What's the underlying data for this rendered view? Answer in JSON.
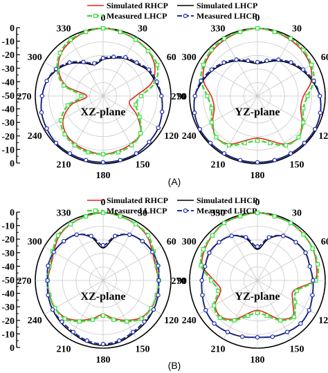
{
  "colors": {
    "simulated_rhcp": "#e8231d",
    "simulated_lhcp": "#000000",
    "measured_lhcp": "#3ddc3d",
    "measured_lhcp_2": "#1a2aa6"
  },
  "chart_data": [
    {
      "type": "polar-line",
      "panel": "(A)",
      "plane": "XZ-plane",
      "rlim": [
        -50,
        0
      ],
      "radial_ticks": [
        0,
        -10,
        -20,
        -30,
        -40,
        -50
      ],
      "angle_ticks": [
        0,
        30,
        60,
        90,
        120,
        150,
        180,
        210,
        240,
        270,
        300,
        330
      ],
      "theta": [
        0,
        15,
        30,
        45,
        60,
        75,
        90,
        105,
        120,
        135,
        150,
        165,
        180,
        195,
        210,
        225,
        240,
        255,
        270,
        285,
        300,
        315,
        330,
        345
      ],
      "series": [
        {
          "name": "Simulated RHCP",
          "values": [
            0,
            -1,
            -2,
            -3,
            -6,
            -13,
            -26,
            -30,
            -21,
            -11,
            -9,
            -8,
            -7,
            -8,
            -9,
            -11,
            -16,
            -26,
            -38,
            -22,
            -12,
            -6,
            -3,
            -1
          ]
        },
        {
          "name": "Simulated LHCP",
          "values": [
            -23,
            -21,
            -18,
            -16,
            -12,
            -10,
            -7,
            -5,
            -3,
            -2,
            -1,
            -1,
            -1,
            -1,
            -1,
            -1,
            -2,
            -3,
            -5,
            -7,
            -11,
            -16,
            -22,
            -26
          ]
        },
        {
          "name": "Measured LHCP",
          "values": [
            0,
            -1,
            -2,
            -3,
            -4,
            -10,
            -22,
            -25,
            -19,
            -11,
            -8,
            -7,
            -7,
            -7,
            -8,
            -10,
            -14,
            -23,
            -34,
            -20,
            -11,
            -5,
            -2,
            -1
          ]
        },
        {
          "name": "Measured LHCP",
          "values": [
            -22,
            -20,
            -17,
            -15,
            -11,
            -9,
            -7,
            -5,
            -3,
            -2,
            -1,
            -1,
            -1,
            -1,
            -1,
            -1,
            -2,
            -3,
            -5,
            -7,
            -10,
            -15,
            -21,
            -25
          ]
        }
      ]
    },
    {
      "type": "polar-line",
      "panel": "(A)",
      "plane": "YZ-plane",
      "rlim": [
        -50,
        0
      ],
      "radial_ticks": [
        0,
        -10,
        -20,
        -30,
        -40,
        -50
      ],
      "angle_ticks": [
        0,
        30,
        60,
        90,
        120,
        150,
        180,
        210,
        240,
        270,
        300,
        330
      ],
      "theta": [
        0,
        15,
        30,
        45,
        60,
        75,
        90,
        105,
        120,
        135,
        150,
        165,
        180,
        195,
        210,
        225,
        240,
        255,
        270,
        285,
        300,
        315,
        330,
        345
      ],
      "series": [
        {
          "name": "Simulated RHCP",
          "values": [
            0,
            -1,
            -2,
            -3,
            -5,
            -9,
            -16,
            -17,
            -12,
            -7,
            -9,
            -16,
            -19,
            -16,
            -9,
            -7,
            -12,
            -17,
            -16,
            -9,
            -5,
            -3,
            -2,
            -1
          ]
        },
        {
          "name": "Simulated LHCP",
          "values": [
            -26,
            -24,
            -20,
            -16,
            -12,
            -8,
            -4,
            -2,
            -1,
            -1,
            -1,
            -1,
            -1,
            -1,
            -1,
            -1,
            -1,
            -2,
            -4,
            -8,
            -12,
            -16,
            -20,
            -24
          ]
        },
        {
          "name": "Measured LHCP",
          "values": [
            0,
            -1,
            -1,
            -2,
            -4,
            -7,
            -13,
            -15,
            -11,
            -7,
            -8,
            -14,
            -17,
            -14,
            -8,
            -7,
            -11,
            -15,
            -13,
            -7,
            -4,
            -2,
            -1,
            -1
          ]
        },
        {
          "name": "Measured LHCP",
          "values": [
            -25,
            -23,
            -19,
            -15,
            -11,
            -7,
            -4,
            -2,
            -1,
            -1,
            -1,
            -1,
            -1,
            -1,
            -1,
            -1,
            -1,
            -2,
            -4,
            -7,
            -11,
            -15,
            -19,
            -23
          ]
        }
      ]
    },
    {
      "type": "polar-line",
      "panel": "(B)",
      "plane": "XZ-plane",
      "rlim": [
        -50,
        0
      ],
      "radial_ticks": [
        0,
        -10,
        -20,
        -30,
        -40,
        -50
      ],
      "angle_ticks": [
        0,
        30,
        60,
        90,
        120,
        150,
        180,
        210,
        240,
        270,
        300,
        330
      ],
      "theta": [
        0,
        15,
        30,
        45,
        60,
        75,
        90,
        105,
        120,
        135,
        150,
        165,
        180,
        195,
        210,
        225,
        240,
        255,
        270,
        285,
        300,
        315,
        330,
        345
      ],
      "series": [
        {
          "name": "Simulated RHCP",
          "values": [
            0,
            -1,
            -2,
            -4,
            -8,
            -10,
            -9,
            -9,
            -9,
            -11,
            -16,
            -21,
            -25,
            -21,
            -16,
            -11,
            -9,
            -9,
            -9,
            -10,
            -8,
            -4,
            -2,
            -1
          ]
        },
        {
          "name": "Simulated LHCP",
          "values": [
            -26,
            -17,
            -11,
            -9,
            -8,
            -8,
            -9,
            -8,
            -7,
            -6,
            -5,
            -3,
            -2,
            -3,
            -5,
            -6,
            -7,
            -8,
            -9,
            -8,
            -8,
            -9,
            -11,
            -17
          ]
        },
        {
          "name": "Measured LHCP",
          "values": [
            0,
            -1,
            -2,
            -3,
            -7,
            -9,
            -9,
            -9,
            -9,
            -10,
            -15,
            -20,
            -24,
            -20,
            -15,
            -10,
            -9,
            -9,
            -9,
            -9,
            -7,
            -3,
            -2,
            -1
          ]
        },
        {
          "name": "Measured LHCP",
          "values": [
            -24,
            -16,
            -11,
            -9,
            -8,
            -8,
            -9,
            -8,
            -7,
            -7,
            -6,
            -4,
            -3,
            -4,
            -6,
            -7,
            -7,
            -8,
            -9,
            -8,
            -8,
            -9,
            -11,
            -16
          ]
        }
      ]
    },
    {
      "type": "polar-line",
      "panel": "(B)",
      "plane": "YZ-plane",
      "rlim": [
        -50,
        0
      ],
      "radial_ticks": [
        0,
        -10,
        -20,
        -30,
        -40,
        -50
      ],
      "angle_ticks": [
        0,
        30,
        60,
        90,
        120,
        150,
        180,
        210,
        240,
        270,
        300,
        330
      ],
      "theta": [
        0,
        15,
        30,
        45,
        60,
        75,
        90,
        105,
        120,
        135,
        150,
        165,
        180,
        195,
        210,
        225,
        240,
        255,
        270,
        285,
        300,
        315,
        330,
        345
      ],
      "series": [
        {
          "name": "Simulated RHCP",
          "values": [
            0,
            -1,
            -1,
            -2,
            -3,
            -5,
            -8,
            -22,
            -20,
            -13,
            -17,
            -25,
            -28,
            -25,
            -17,
            -12,
            -14,
            -22,
            -18,
            -8,
            -5,
            -3,
            -1,
            -1
          ]
        },
        {
          "name": "Simulated LHCP",
          "values": [
            -27,
            -18,
            -12,
            -10,
            -9,
            -10,
            -9,
            -8,
            -6,
            -5,
            -6,
            -7,
            -8,
            -7,
            -6,
            -5,
            -6,
            -8,
            -9,
            -10,
            -9,
            -10,
            -12,
            -18
          ]
        },
        {
          "name": "Measured LHCP",
          "values": [
            0,
            -1,
            -1,
            -2,
            -3,
            -4,
            -7,
            -20,
            -18,
            -12,
            -16,
            -23,
            -26,
            -23,
            -16,
            -11,
            -13,
            -20,
            -16,
            -7,
            -4,
            -3,
            -1,
            -1
          ]
        },
        {
          "name": "Measured LHCP",
          "values": [
            -25,
            -17,
            -12,
            -10,
            -9,
            -10,
            -9,
            -8,
            -6,
            -5,
            -6,
            -7,
            -8,
            -7,
            -6,
            -5,
            -6,
            -8,
            -9,
            -10,
            -9,
            -10,
            -12,
            -17
          ]
        }
      ]
    }
  ]
}
